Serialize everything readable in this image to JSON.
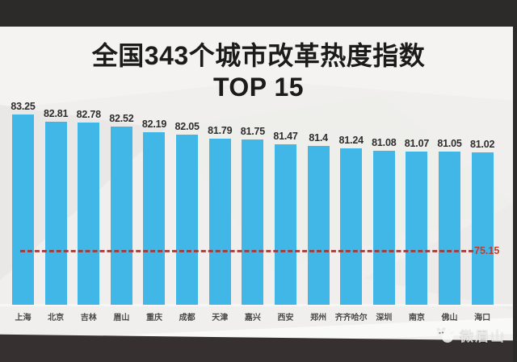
{
  "title": {
    "line1": "全国343个城市改革热度指数",
    "line2": "TOP 15"
  },
  "chart_data": {
    "type": "bar",
    "title": "全国343个城市改革热度指数 TOP 15",
    "categories": [
      "上海",
      "北京",
      "吉林",
      "眉山",
      "重庆",
      "成都",
      "天津",
      "嘉兴",
      "西安",
      "郑州",
      "齐齐哈尔",
      "深圳",
      "南京",
      "佛山",
      "海口"
    ],
    "values": [
      83.25,
      82.81,
      82.78,
      82.52,
      82.19,
      82.05,
      81.79,
      81.75,
      81.47,
      81.4,
      81.24,
      81.08,
      81.07,
      81.05,
      81.02
    ],
    "value_labels": [
      "83.25",
      "82.81",
      "82.78",
      "82.52",
      "82.19",
      "82.05",
      "81.79",
      "81.75",
      "81.47",
      "81.4",
      "81.24",
      "81.08",
      "81.07",
      "81.05",
      "81.02"
    ],
    "reference_line": {
      "value": 75.15,
      "label": "75.15"
    },
    "ylim": [
      72,
      84
    ],
    "grid": false,
    "legend": false,
    "xlabel": "",
    "ylabel": "",
    "value_labels_position": "above-bars"
  },
  "watermark": {
    "text": "微眉山",
    "icon": "panda-mascot-icon"
  },
  "colors": {
    "background": "#f0efed",
    "header_bar": "#2c2b2a",
    "footer_bar": "#363031",
    "bar": "#40b7e6",
    "title_text": "#1b1b1b",
    "value_text": "#2d2d2d",
    "category_text": "#4a4a4a",
    "reference_line": "#a03a38",
    "reference_label": "#c23a2e",
    "watermark_text": "#e9e9e9"
  }
}
